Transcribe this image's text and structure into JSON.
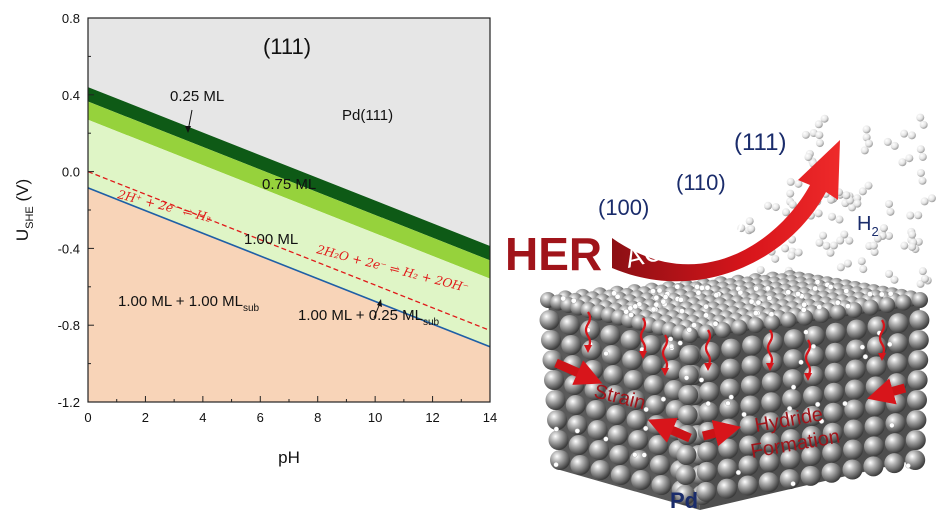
{
  "chart_data": {
    "type": "area",
    "title": "(111)",
    "xlabel": "pH",
    "ylabel": {
      "main": "U",
      "sub": "SHE",
      "unit": " (V)"
    },
    "xlim": [
      0,
      14
    ],
    "ylim": [
      -1.2,
      0.8
    ],
    "xticks": [
      "0",
      "2",
      "4",
      "6",
      "8",
      "10",
      "12",
      "14"
    ],
    "yticks": [
      "-1.2",
      "-0.8",
      "-0.4",
      "0.0",
      "0.4",
      "0.8"
    ],
    "grid": false,
    "slope": -0.0591,
    "regions": [
      {
        "name": "Pd(111)",
        "label": "Pd(111)",
        "color": "#e6e6e6",
        "lower_at_pH0": 0.44
      },
      {
        "name": "0.25 ML",
        "label": "0.25 ML",
        "color": "#0e5a16",
        "upper_at_pH0": 0.44,
        "lower_at_pH0": 0.365
      },
      {
        "name": "0.75 ML",
        "label": "0.75 ML",
        "color": "#96d23c",
        "upper_at_pH0": 0.365,
        "lower_at_pH0": 0.27
      },
      {
        "name": "1.00 ML",
        "label": "1.00 ML",
        "color": "#dff5c6",
        "upper_at_pH0": 0.27,
        "lower_at_pH0": -0.085
      },
      {
        "name": "1.00 ML + 1.00 ML_sub",
        "label": {
          "main": "1.00 ML + 1.00 ML",
          "sub": "sub"
        },
        "color": "#f8d4b8",
        "upper_at_pH0": -0.085
      },
      {
        "name": "1.00 ML + 0.25 ML_sub",
        "label": {
          "main": "1.00 ML + 0.25 ML",
          "sub": "sub"
        },
        "boundary_color": "#1f5fa6",
        "boundary_at_pH0": -0.085
      }
    ],
    "reference_lines": [
      {
        "name": "HER equilibrium",
        "style": "dashed",
        "color": "#e01818",
        "at_pH0": 0.0,
        "label_acid": "2H⁺ + 2e⁻ ⇌ H₂",
        "label_base": "2H₂O + 2e⁻ ⇌ H₂ + 2OH⁻"
      }
    ]
  },
  "illustration": {
    "title_word": "HER",
    "arrow_word": "ACTIVITY",
    "facets": [
      "(100)",
      "(110)",
      "(111)"
    ],
    "gas_label": {
      "main": "H",
      "sub": "2"
    },
    "labels": [
      "Strain",
      "Hydride",
      "Formation"
    ],
    "metal_label": "Pd",
    "colors": {
      "arrow": "#d8151b",
      "her_text": "#a0141a",
      "facet_text": "#1a2c6b"
    }
  }
}
